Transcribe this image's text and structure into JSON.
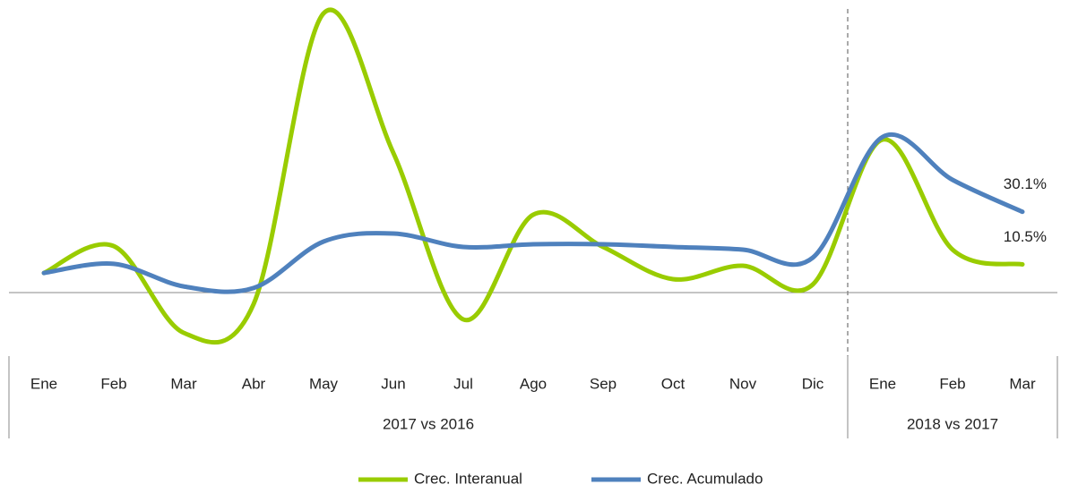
{
  "chart_data": {
    "type": "line",
    "categories": [
      "Ene",
      "Feb",
      "Mar",
      "Abr",
      "May",
      "Jun",
      "Jul",
      "Ago",
      "Sep",
      "Oct",
      "Nov",
      "Dic",
      "Ene",
      "Feb",
      "Mar"
    ],
    "groups": [
      {
        "name": "2017 vs 2016",
        "count": 12
      },
      {
        "name": "2018 vs 2017",
        "count": 3
      }
    ],
    "series": [
      {
        "name": "Crec. Interanual",
        "color": "#99cc00",
        "values": [
          7.3,
          17.3,
          -15,
          -4.3,
          104,
          52,
          -10,
          29,
          17,
          5,
          10,
          3,
          57,
          16,
          10.5
        ],
        "value_labels": [
          null,
          null,
          null,
          null,
          null,
          null,
          null,
          null,
          null,
          null,
          null,
          null,
          null,
          null,
          "10.5%"
        ]
      },
      {
        "name": "Crec. Acumulado",
        "color": "#4f81bd",
        "values": [
          7.3,
          10.7,
          2.3,
          1.7,
          19,
          22,
          17,
          18,
          18,
          17,
          16,
          13,
          58,
          42,
          30.1
        ],
        "value_labels": [
          null,
          null,
          null,
          null,
          null,
          null,
          null,
          null,
          null,
          null,
          null,
          null,
          null,
          null,
          "30.1%"
        ]
      }
    ],
    "ylim": [
      -25,
      106
    ]
  }
}
